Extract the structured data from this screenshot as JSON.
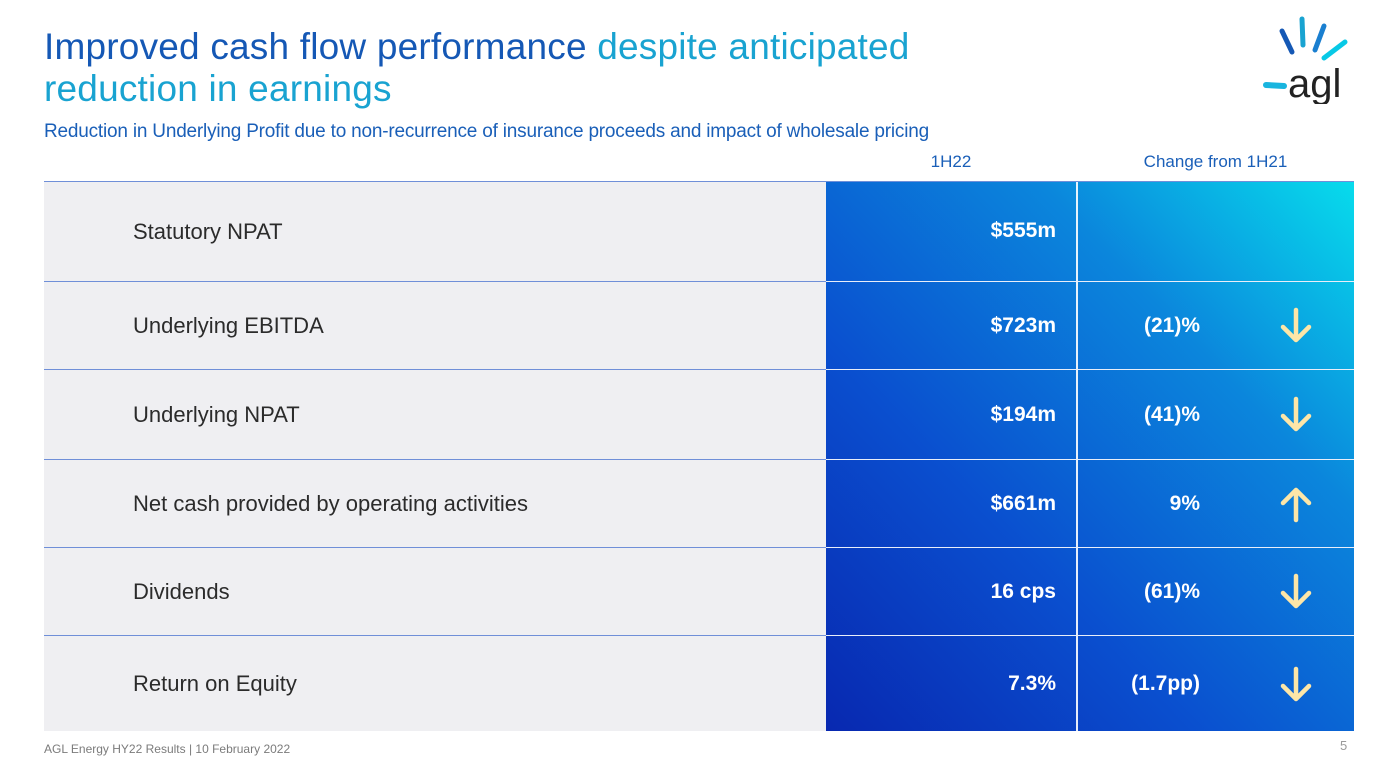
{
  "header": {
    "title_part1": "Improved cash flow performance",
    "title_part2": " despite anticipated reduction in earnings",
    "subtitle": "Reduction in Underlying Profit due to non-recurrence of insurance proceeds and impact of wholesale pricing",
    "logo_text": "agl"
  },
  "table": {
    "col_1h22": "1H22",
    "col_change": "Change from 1H21",
    "rows": [
      {
        "label": "Statutory NPAT",
        "value": "$555m",
        "change": "",
        "direction": "none"
      },
      {
        "label": "Underlying EBITDA",
        "value": "$723m",
        "change": "(21)%",
        "direction": "down"
      },
      {
        "label": "Underlying NPAT",
        "value": "$194m",
        "change": "(41)%",
        "direction": "down"
      },
      {
        "label": "Net cash provided by operating activities",
        "value": "$661m",
        "change": "9%",
        "direction": "up"
      },
      {
        "label": "Dividends",
        "value": "16 cps",
        "change": "(61)%",
        "direction": "down"
      },
      {
        "label": "Return on Equity",
        "value": "7.3%",
        "change": "(1.7pp)",
        "direction": "down"
      }
    ]
  },
  "footer": {
    "text": "AGL Energy HY22 Results | 10 February 2022",
    "page": "5"
  },
  "colors": {
    "title_dark": "#1558b5",
    "title_light": "#19a3d1",
    "arrow": "#fde6a8",
    "gradient_start": "#0828b0",
    "gradient_end": "#07dcec"
  },
  "icons": {
    "down": "arrow-down-icon",
    "up": "arrow-up-icon"
  }
}
